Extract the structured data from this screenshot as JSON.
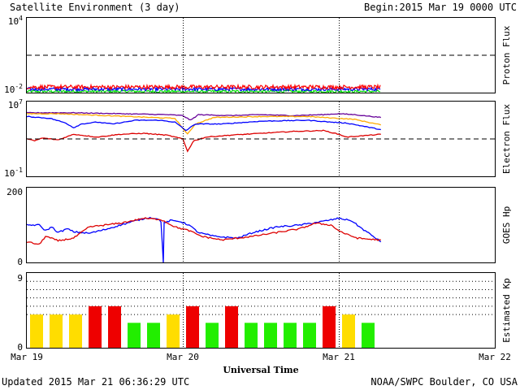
{
  "header": {
    "title": "Satellite Environment (3 day)",
    "begin_label": "Begin:",
    "begin_value": "2015 Mar 19 0000 UTC"
  },
  "footer": {
    "updated": "Updated 2015 Mar 21 06:36:29 UTC",
    "credit": "NOAA/SWPC Boulder, CO USA"
  },
  "xaxis": {
    "title": "Universal Time",
    "ticks": [
      "Mar 19",
      "Mar 20",
      "Mar 21",
      "Mar 22"
    ],
    "range_days": [
      0,
      3
    ],
    "day_dividers": [
      1,
      2
    ],
    "data_end_day": 2.27
  },
  "chart_data": [
    {
      "type": "line",
      "ylabel": "Proton Flux",
      "yscale": "log",
      "ylim_exp": [
        -2,
        4
      ],
      "ytick_labels": [
        {
          "base": "10",
          "exp": "4"
        },
        {
          "base": "10",
          "exp": "-2"
        }
      ],
      "threshold_exp": 1,
      "series": [
        {
          "color": "#ff0000",
          "level_exp": -1.55,
          "noise": 0.16
        },
        {
          "color": "#0000ff",
          "level_exp": -1.72,
          "noise": 0.13
        },
        {
          "color": "#00dd00",
          "level_exp": -1.9,
          "noise": 0.1
        }
      ]
    },
    {
      "type": "line",
      "ylabel": "Electron Flux",
      "yscale": "log",
      "ylim_exp": [
        -1,
        7
      ],
      "ytick_labels": [
        {
          "base": "10",
          "exp": "7"
        },
        {
          "base": "10",
          "exp": "-1"
        }
      ],
      "threshold_exp": 3,
      "series": [
        {
          "color": "#660099",
          "points": [
            [
              0,
              5.8
            ],
            [
              0.3,
              5.8
            ],
            [
              0.6,
              5.7
            ],
            [
              0.9,
              5.6
            ],
            [
              1.0,
              5.5
            ],
            [
              1.05,
              5.0
            ],
            [
              1.1,
              5.6
            ],
            [
              1.3,
              5.5
            ],
            [
              1.5,
              5.6
            ],
            [
              1.7,
              5.5
            ],
            [
              1.9,
              5.6
            ],
            [
              2.0,
              5.7
            ],
            [
              2.1,
              5.6
            ],
            [
              2.27,
              5.3
            ]
          ]
        },
        {
          "color": "#ffaa00",
          "points": [
            [
              0,
              5.7
            ],
            [
              0.2,
              5.7
            ],
            [
              0.5,
              5.5
            ],
            [
              0.8,
              5.3
            ],
            [
              0.95,
              5.2
            ],
            [
              1.03,
              3.5
            ],
            [
              1.08,
              4.6
            ],
            [
              1.2,
              5.3
            ],
            [
              1.5,
              5.4
            ],
            [
              1.8,
              5.4
            ],
            [
              2.0,
              5.2
            ],
            [
              2.1,
              5.1
            ],
            [
              2.27,
              4.5
            ]
          ]
        },
        {
          "color": "#0000ff",
          "points": [
            [
              0,
              5.4
            ],
            [
              0.15,
              5.2
            ],
            [
              0.25,
              4.7
            ],
            [
              0.3,
              4.2
            ],
            [
              0.35,
              4.6
            ],
            [
              0.45,
              4.8
            ],
            [
              0.55,
              4.6
            ],
            [
              0.7,
              5.0
            ],
            [
              0.85,
              5.0
            ],
            [
              0.95,
              4.8
            ],
            [
              1.02,
              3.9
            ],
            [
              1.08,
              4.6
            ],
            [
              1.25,
              4.6
            ],
            [
              1.5,
              4.9
            ],
            [
              1.8,
              5.0
            ],
            [
              1.95,
              4.8
            ],
            [
              2.05,
              4.7
            ],
            [
              2.27,
              4.0
            ]
          ]
        },
        {
          "color": "#dd0000",
          "points": [
            [
              0,
              3.0
            ],
            [
              0.05,
              2.8
            ],
            [
              0.1,
              3.1
            ],
            [
              0.2,
              2.9
            ],
            [
              0.3,
              3.5
            ],
            [
              0.45,
              3.2
            ],
            [
              0.6,
              3.5
            ],
            [
              0.75,
              3.6
            ],
            [
              0.9,
              3.4
            ],
            [
              1.0,
              3.0
            ],
            [
              1.03,
              1.7
            ],
            [
              1.07,
              2.8
            ],
            [
              1.15,
              3.2
            ],
            [
              1.3,
              3.4
            ],
            [
              1.5,
              3.6
            ],
            [
              1.7,
              3.8
            ],
            [
              1.9,
              3.9
            ],
            [
              2.0,
              3.5
            ],
            [
              2.05,
              3.2
            ],
            [
              2.27,
              3.5
            ]
          ]
        }
      ]
    },
    {
      "type": "line",
      "ylabel": "GOES Hp",
      "yscale": "linear",
      "ylim": [
        0,
        200
      ],
      "ytick_labels": [
        "200",
        "0"
      ],
      "series": [
        {
          "color": "#0000ff",
          "points": [
            [
              0,
              100
            ],
            [
              0.08,
              100
            ],
            [
              0.12,
              85
            ],
            [
              0.16,
              95
            ],
            [
              0.2,
              80
            ],
            [
              0.26,
              90
            ],
            [
              0.3,
              82
            ],
            [
              0.4,
              78
            ],
            [
              0.5,
              88
            ],
            [
              0.6,
              100
            ],
            [
              0.7,
              112
            ],
            [
              0.78,
              120
            ],
            [
              0.83,
              118
            ],
            [
              0.86,
              110
            ],
            [
              0.87,
              40
            ],
            [
              0.875,
              0
            ],
            [
              0.88,
              105
            ],
            [
              0.92,
              112
            ],
            [
              0.98,
              110
            ],
            [
              1.04,
              100
            ],
            [
              1.1,
              80
            ],
            [
              1.2,
              70
            ],
            [
              1.35,
              65
            ],
            [
              1.45,
              80
            ],
            [
              1.6,
              95
            ],
            [
              1.75,
              100
            ],
            [
              1.9,
              110
            ],
            [
              2.0,
              118
            ],
            [
              2.08,
              112
            ],
            [
              2.15,
              90
            ],
            [
              2.22,
              70
            ],
            [
              2.27,
              55
            ]
          ]
        },
        {
          "color": "#dd0000",
          "points": [
            [
              0,
              55
            ],
            [
              0.08,
              48
            ],
            [
              0.12,
              70
            ],
            [
              0.2,
              58
            ],
            [
              0.3,
              65
            ],
            [
              0.4,
              95
            ],
            [
              0.5,
              100
            ],
            [
              0.6,
              105
            ],
            [
              0.75,
              118
            ],
            [
              0.86,
              115
            ],
            [
              0.95,
              95
            ],
            [
              1.04,
              85
            ],
            [
              1.12,
              70
            ],
            [
              1.25,
              60
            ],
            [
              1.35,
              65
            ],
            [
              1.45,
              70
            ],
            [
              1.6,
              80
            ],
            [
              1.75,
              90
            ],
            [
              1.85,
              105
            ],
            [
              1.95,
              100
            ],
            [
              2.0,
              85
            ],
            [
              2.05,
              75
            ],
            [
              2.12,
              65
            ],
            [
              2.2,
              62
            ],
            [
              2.27,
              60
            ]
          ]
        }
      ]
    },
    {
      "type": "bar",
      "ylabel": "Estimated Kp",
      "ylim": [
        0,
        9
      ],
      "ytick_labels": [
        "9",
        "0"
      ],
      "gridlines": [
        4,
        5,
        6,
        7,
        8
      ],
      "bar_width_days": 0.125,
      "values": [
        4,
        4,
        4,
        5,
        5,
        3,
        3,
        4,
        5,
        3,
        5,
        3,
        3,
        3,
        3,
        5,
        4,
        3
      ],
      "colors": {
        "quiet": "#22ee00",
        "active": "#ffdd00",
        "storm": "#ee0000"
      }
    }
  ]
}
